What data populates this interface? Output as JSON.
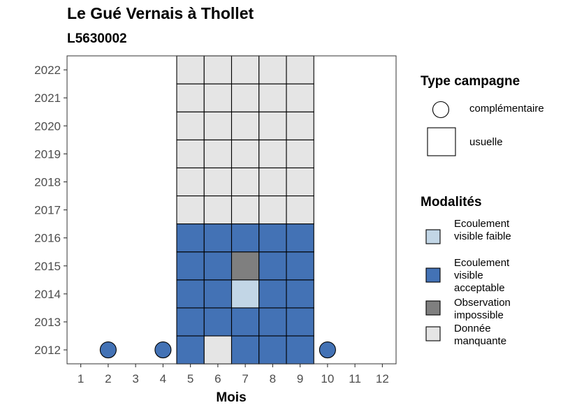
{
  "title": "Le Gué Vernais à Thollet",
  "subtitle": "L5630002",
  "chart_data": {
    "type": "heatmap",
    "xlabel": "Mois",
    "ylabel": "",
    "x_ticks": [
      "1",
      "2",
      "3",
      "4",
      "5",
      "6",
      "7",
      "8",
      "9",
      "10",
      "11",
      "12"
    ],
    "y_ticks": [
      "2012",
      "2013",
      "2014",
      "2015",
      "2016",
      "2017",
      "2018",
      "2019",
      "2020",
      "2021",
      "2022"
    ],
    "colors": {
      "Ecoulement visible faible": "#c2d6e6",
      "Ecoulement visible acceptable": "#4372b5",
      "Observation impossible": "#7f7f7f",
      "Donnée manquante": "#e5e5e5"
    },
    "cells": [
      {
        "year": "2012",
        "month": 2,
        "type": "complémentaire",
        "value": "Ecoulement visible acceptable"
      },
      {
        "year": "2012",
        "month": 4,
        "type": "complémentaire",
        "value": "Ecoulement visible acceptable"
      },
      {
        "year": "2012",
        "month": 5,
        "type": "usuelle",
        "value": "Ecoulement visible acceptable"
      },
      {
        "year": "2012",
        "month": 6,
        "type": "usuelle",
        "value": "Donnée manquante"
      },
      {
        "year": "2012",
        "month": 7,
        "type": "usuelle",
        "value": "Ecoulement visible acceptable"
      },
      {
        "year": "2012",
        "month": 8,
        "type": "usuelle",
        "value": "Ecoulement visible acceptable"
      },
      {
        "year": "2012",
        "month": 9,
        "type": "usuelle",
        "value": "Ecoulement visible acceptable"
      },
      {
        "year": "2012",
        "month": 10,
        "type": "complémentaire",
        "value": "Ecoulement visible acceptable"
      },
      {
        "year": "2013",
        "month": 5,
        "type": "usuelle",
        "value": "Ecoulement visible acceptable"
      },
      {
        "year": "2013",
        "month": 6,
        "type": "usuelle",
        "value": "Ecoulement visible acceptable"
      },
      {
        "year": "2013",
        "month": 7,
        "type": "usuelle",
        "value": "Ecoulement visible acceptable"
      },
      {
        "year": "2013",
        "month": 8,
        "type": "usuelle",
        "value": "Ecoulement visible acceptable"
      },
      {
        "year": "2013",
        "month": 9,
        "type": "usuelle",
        "value": "Ecoulement visible acceptable"
      },
      {
        "year": "2014",
        "month": 5,
        "type": "usuelle",
        "value": "Ecoulement visible acceptable"
      },
      {
        "year": "2014",
        "month": 6,
        "type": "usuelle",
        "value": "Ecoulement visible acceptable"
      },
      {
        "year": "2014",
        "month": 7,
        "type": "usuelle",
        "value": "Ecoulement visible faible"
      },
      {
        "year": "2014",
        "month": 8,
        "type": "usuelle",
        "value": "Ecoulement visible acceptable"
      },
      {
        "year": "2014",
        "month": 9,
        "type": "usuelle",
        "value": "Ecoulement visible acceptable"
      },
      {
        "year": "2015",
        "month": 5,
        "type": "usuelle",
        "value": "Ecoulement visible acceptable"
      },
      {
        "year": "2015",
        "month": 6,
        "type": "usuelle",
        "value": "Ecoulement visible acceptable"
      },
      {
        "year": "2015",
        "month": 7,
        "type": "usuelle",
        "value": "Observation impossible"
      },
      {
        "year": "2015",
        "month": 8,
        "type": "usuelle",
        "value": "Ecoulement visible acceptable"
      },
      {
        "year": "2015",
        "month": 9,
        "type": "usuelle",
        "value": "Ecoulement visible acceptable"
      },
      {
        "year": "2016",
        "month": 5,
        "type": "usuelle",
        "value": "Ecoulement visible acceptable"
      },
      {
        "year": "2016",
        "month": 6,
        "type": "usuelle",
        "value": "Ecoulement visible acceptable"
      },
      {
        "year": "2016",
        "month": 7,
        "type": "usuelle",
        "value": "Ecoulement visible acceptable"
      },
      {
        "year": "2016",
        "month": 8,
        "type": "usuelle",
        "value": "Ecoulement visible acceptable"
      },
      {
        "year": "2016",
        "month": 9,
        "type": "usuelle",
        "value": "Ecoulement visible acceptable"
      },
      {
        "year": "2017",
        "month": 5,
        "type": "usuelle",
        "value": "Donnée manquante"
      },
      {
        "year": "2017",
        "month": 6,
        "type": "usuelle",
        "value": "Donnée manquante"
      },
      {
        "year": "2017",
        "month": 7,
        "type": "usuelle",
        "value": "Donnée manquante"
      },
      {
        "year": "2017",
        "month": 8,
        "type": "usuelle",
        "value": "Donnée manquante"
      },
      {
        "year": "2017",
        "month": 9,
        "type": "usuelle",
        "value": "Donnée manquante"
      },
      {
        "year": "2018",
        "month": 5,
        "type": "usuelle",
        "value": "Donnée manquante"
      },
      {
        "year": "2018",
        "month": 6,
        "type": "usuelle",
        "value": "Donnée manquante"
      },
      {
        "year": "2018",
        "month": 7,
        "type": "usuelle",
        "value": "Donnée manquante"
      },
      {
        "year": "2018",
        "month": 8,
        "type": "usuelle",
        "value": "Donnée manquante"
      },
      {
        "year": "2018",
        "month": 9,
        "type": "usuelle",
        "value": "Donnée manquante"
      },
      {
        "year": "2019",
        "month": 5,
        "type": "usuelle",
        "value": "Donnée manquante"
      },
      {
        "year": "2019",
        "month": 6,
        "type": "usuelle",
        "value": "Donnée manquante"
      },
      {
        "year": "2019",
        "month": 7,
        "type": "usuelle",
        "value": "Donnée manquante"
      },
      {
        "year": "2019",
        "month": 8,
        "type": "usuelle",
        "value": "Donnée manquante"
      },
      {
        "year": "2019",
        "month": 9,
        "type": "usuelle",
        "value": "Donnée manquante"
      },
      {
        "year": "2020",
        "month": 5,
        "type": "usuelle",
        "value": "Donnée manquante"
      },
      {
        "year": "2020",
        "month": 6,
        "type": "usuelle",
        "value": "Donnée manquante"
      },
      {
        "year": "2020",
        "month": 7,
        "type": "usuelle",
        "value": "Donnée manquante"
      },
      {
        "year": "2020",
        "month": 8,
        "type": "usuelle",
        "value": "Donnée manquante"
      },
      {
        "year": "2020",
        "month": 9,
        "type": "usuelle",
        "value": "Donnée manquante"
      },
      {
        "year": "2021",
        "month": 5,
        "type": "usuelle",
        "value": "Donnée manquante"
      },
      {
        "year": "2021",
        "month": 6,
        "type": "usuelle",
        "value": "Donnée manquante"
      },
      {
        "year": "2021",
        "month": 7,
        "type": "usuelle",
        "value": "Donnée manquante"
      },
      {
        "year": "2021",
        "month": 8,
        "type": "usuelle",
        "value": "Donnée manquante"
      },
      {
        "year": "2021",
        "month": 9,
        "type": "usuelle",
        "value": "Donnée manquante"
      },
      {
        "year": "2022",
        "month": 5,
        "type": "usuelle",
        "value": "Donnée manquante"
      },
      {
        "year": "2022",
        "month": 6,
        "type": "usuelle",
        "value": "Donnée manquante"
      },
      {
        "year": "2022",
        "month": 7,
        "type": "usuelle",
        "value": "Donnée manquante"
      },
      {
        "year": "2022",
        "month": 8,
        "type": "usuelle",
        "value": "Donnée manquante"
      },
      {
        "year": "2022",
        "month": 9,
        "type": "usuelle",
        "value": "Donnée manquante"
      }
    ],
    "legend": {
      "placement": "right",
      "type_title": "Type campagne",
      "types": [
        "complémentaire",
        "usuelle"
      ],
      "modalites_title": "Modalités",
      "modalites": [
        "Ecoulement visible faible",
        "Ecoulement visible acceptable",
        "Observation impossible",
        "Donnée manquante"
      ]
    }
  }
}
